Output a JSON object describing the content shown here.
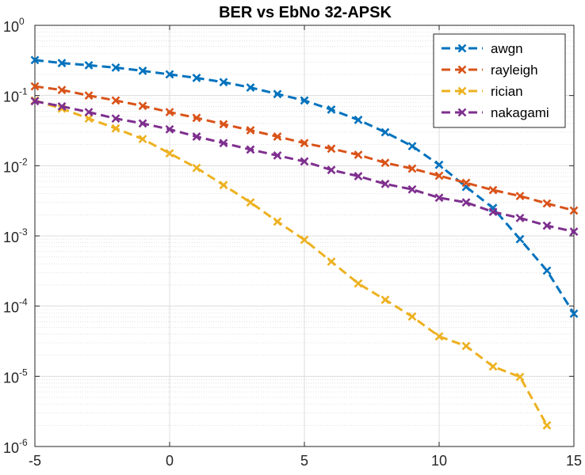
{
  "chart_data": {
    "type": "line",
    "title": "BER vs EbNo 32-APSK",
    "xlabel": "",
    "ylabel": "",
    "xlim": [
      -5,
      15
    ],
    "ylim": [
      1e-06,
      1
    ],
    "yscale": "log",
    "grid": true,
    "minor_grid": true,
    "legend_position": "top-right",
    "x_ticks": [
      -5,
      0,
      5,
      10,
      15
    ],
    "x_tick_labels": [
      "-5",
      "0",
      "5",
      "10",
      "15"
    ],
    "y_ticks": [
      1e-06,
      1e-05,
      0.0001,
      0.001,
      0.01,
      0.1,
      1
    ],
    "y_tick_labels": [
      {
        "base": "10",
        "exp": "-6"
      },
      {
        "base": "10",
        "exp": "-5"
      },
      {
        "base": "10",
        "exp": "-4"
      },
      {
        "base": "10",
        "exp": "-3"
      },
      {
        "base": "10",
        "exp": "-2"
      },
      {
        "base": "10",
        "exp": "-1"
      },
      {
        "base": "10",
        "exp": "0"
      }
    ],
    "series": [
      {
        "name": "awgn",
        "color": "#0072BD",
        "x": [
          -5,
          -4,
          -3,
          -2,
          -1,
          0,
          1,
          2,
          3,
          4,
          5,
          6,
          7,
          8,
          9,
          10,
          11,
          12,
          13,
          14,
          15
        ],
        "y": [
          0.32,
          0.29,
          0.27,
          0.25,
          0.225,
          0.2,
          0.178,
          0.155,
          0.13,
          0.105,
          0.085,
          0.063,
          0.045,
          0.03,
          0.019,
          0.0103,
          0.005,
          0.0025,
          0.0009,
          0.00032,
          7.8e-05
        ]
      },
      {
        "name": "rayleigh",
        "color": "#D95319",
        "x": [
          -5,
          -4,
          -3,
          -2,
          -1,
          0,
          1,
          2,
          3,
          4,
          5,
          6,
          7,
          8,
          9,
          10,
          11,
          12,
          13,
          14,
          15
        ],
        "y": [
          0.135,
          0.12,
          0.1,
          0.085,
          0.071,
          0.058,
          0.048,
          0.039,
          0.032,
          0.026,
          0.021,
          0.0175,
          0.0143,
          0.011,
          0.0091,
          0.0072,
          0.0057,
          0.0045,
          0.0037,
          0.0029,
          0.0023
        ]
      },
      {
        "name": "rician",
        "color": "#EDB120",
        "x": [
          -5,
          -4,
          -3,
          -2,
          -1,
          0,
          1,
          2,
          3,
          4,
          5,
          6,
          7,
          8,
          9,
          10,
          11,
          12,
          13,
          14
        ],
        "y": [
          0.085,
          0.065,
          0.047,
          0.034,
          0.024,
          0.015,
          0.0093,
          0.0053,
          0.003,
          0.0016,
          0.00088,
          0.00043,
          0.00021,
          0.000123,
          7.1e-05,
          3.7e-05,
          2.7e-05,
          1.38e-05,
          9.8e-06,
          2e-06
        ]
      },
      {
        "name": "nakagami",
        "color": "#7E2F8E",
        "x": [
          -5,
          -4,
          -3,
          -2,
          -1,
          0,
          1,
          2,
          3,
          4,
          5,
          6,
          7,
          8,
          9,
          10,
          11,
          12,
          13,
          14,
          15
        ],
        "y": [
          0.083,
          0.07,
          0.058,
          0.047,
          0.04,
          0.033,
          0.026,
          0.021,
          0.017,
          0.014,
          0.0115,
          0.0087,
          0.0071,
          0.0055,
          0.0046,
          0.0035,
          0.003,
          0.0022,
          0.0018,
          0.0014,
          0.00115
        ]
      }
    ]
  }
}
